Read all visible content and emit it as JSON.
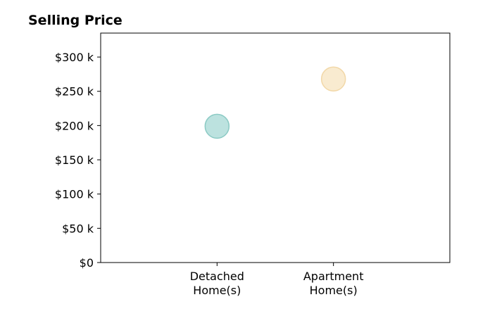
{
  "chart_data": {
    "type": "scatter",
    "title": "Selling Price",
    "xlabel": "",
    "ylabel": "",
    "categories": [
      "Detached\nHome(s)",
      "Apartment\nHome(s)"
    ],
    "values": [
      199000,
      268000
    ],
    "point_colors": [
      "#9fd6d1",
      "#f7e3bc"
    ],
    "point_edge_colors": [
      "#8bcac4",
      "#f2d8a8"
    ],
    "ylim": [
      0,
      335000
    ],
    "yticks": [
      0,
      50000,
      100000,
      150000,
      200000,
      250000,
      300000
    ],
    "ytick_labels": [
      "$0",
      "$50 k",
      "$100 k",
      "$150 k",
      "$200 k",
      "$250 k",
      "$300 k"
    ],
    "grid": false,
    "legend": false
  }
}
